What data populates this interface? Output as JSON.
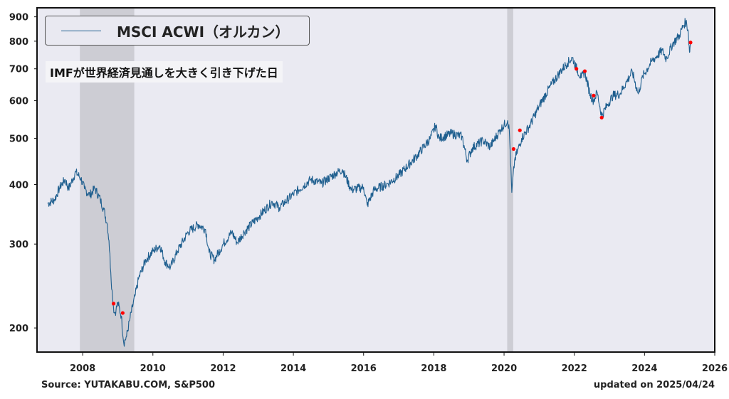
{
  "chart_data": {
    "type": "line",
    "title": "",
    "xlabel": "",
    "ylabel": "",
    "yscale": "log",
    "xlim": [
      2006.7,
      2026.0
    ],
    "ylim": [
      178,
      940
    ],
    "x_ticks": [
      2008,
      2010,
      2012,
      2014,
      2016,
      2018,
      2020,
      2022,
      2024,
      2026
    ],
    "y_ticks": [
      200,
      300,
      400,
      500,
      600,
      700,
      800,
      900
    ],
    "grid": false,
    "legend_position": "top-left",
    "colors": {
      "line": "#1f5f8f",
      "marker": "#ff0000",
      "plot_bg": "#eaeaf2",
      "shade": "#c8c8cf"
    },
    "series": [
      {
        "name": "MSCI ACWI（オルカン）",
        "points": [
          [
            2007.0,
            365
          ],
          [
            2007.2,
            372
          ],
          [
            2007.35,
            395
          ],
          [
            2007.5,
            410
          ],
          [
            2007.6,
            392
          ],
          [
            2007.8,
            425
          ],
          [
            2007.95,
            412
          ],
          [
            2008.05,
            392
          ],
          [
            2008.2,
            380
          ],
          [
            2008.35,
            393
          ],
          [
            2008.5,
            372
          ],
          [
            2008.6,
            355
          ],
          [
            2008.7,
            330
          ],
          [
            2008.75,
            305
          ],
          [
            2008.8,
            262
          ],
          [
            2008.85,
            232
          ],
          [
            2008.9,
            215
          ],
          [
            2008.95,
            218
          ],
          [
            2009.0,
            226
          ],
          [
            2009.1,
            212
          ],
          [
            2009.17,
            186
          ],
          [
            2009.25,
            192
          ],
          [
            2009.35,
            210
          ],
          [
            2009.5,
            235
          ],
          [
            2009.6,
            255
          ],
          [
            2009.8,
            278
          ],
          [
            2010.0,
            290
          ],
          [
            2010.2,
            298
          ],
          [
            2010.35,
            275
          ],
          [
            2010.5,
            268
          ],
          [
            2010.7,
            290
          ],
          [
            2011.0,
            318
          ],
          [
            2011.3,
            330
          ],
          [
            2011.5,
            322
          ],
          [
            2011.6,
            288
          ],
          [
            2011.75,
            278
          ],
          [
            2012.0,
            300
          ],
          [
            2012.25,
            318
          ],
          [
            2012.4,
            302
          ],
          [
            2012.6,
            318
          ],
          [
            2013.0,
            342
          ],
          [
            2013.4,
            368
          ],
          [
            2013.6,
            358
          ],
          [
            2014.0,
            382
          ],
          [
            2014.5,
            410
          ],
          [
            2014.8,
            402
          ],
          [
            2015.2,
            422
          ],
          [
            2015.4,
            430
          ],
          [
            2015.65,
            390
          ],
          [
            2016.0,
            395
          ],
          [
            2016.1,
            362
          ],
          [
            2016.3,
            390
          ],
          [
            2016.7,
            402
          ],
          [
            2017.0,
            418
          ],
          [
            2017.5,
            458
          ],
          [
            2017.9,
            500
          ],
          [
            2018.05,
            532
          ],
          [
            2018.15,
            500
          ],
          [
            2018.5,
            512
          ],
          [
            2018.8,
            505
          ],
          [
            2018.95,
            450
          ],
          [
            2019.1,
            478
          ],
          [
            2019.4,
            495
          ],
          [
            2019.6,
            480
          ],
          [
            2019.9,
            522
          ],
          [
            2020.1,
            545
          ],
          [
            2020.15,
            520
          ],
          [
            2020.22,
            385
          ],
          [
            2020.3,
            450
          ],
          [
            2020.5,
            500
          ],
          [
            2020.75,
            535
          ],
          [
            2021.0,
            585
          ],
          [
            2021.3,
            640
          ],
          [
            2021.6,
            690
          ],
          [
            2021.8,
            720
          ],
          [
            2021.95,
            738
          ],
          [
            2022.05,
            705
          ],
          [
            2022.2,
            670
          ],
          [
            2022.3,
            690
          ],
          [
            2022.45,
            618
          ],
          [
            2022.55,
            600
          ],
          [
            2022.65,
            625
          ],
          [
            2022.78,
            558
          ],
          [
            2022.95,
            590
          ],
          [
            2023.1,
            615
          ],
          [
            2023.3,
            620
          ],
          [
            2023.5,
            660
          ],
          [
            2023.65,
            690
          ],
          [
            2023.82,
            620
          ],
          [
            2023.95,
            675
          ],
          [
            2024.2,
            725
          ],
          [
            2024.5,
            765
          ],
          [
            2024.62,
            735
          ],
          [
            2024.8,
            790
          ],
          [
            2025.0,
            825
          ],
          [
            2025.1,
            862
          ],
          [
            2025.18,
            880
          ],
          [
            2025.24,
            845
          ],
          [
            2025.28,
            758
          ],
          [
            2025.31,
            795
          ]
        ]
      }
    ],
    "markers": [
      [
        2008.88,
        225
      ],
      [
        2009.14,
        215
      ],
      [
        2020.27,
        475
      ],
      [
        2020.45,
        520
      ],
      [
        2022.06,
        700
      ],
      [
        2022.3,
        692
      ],
      [
        2022.55,
        615
      ],
      [
        2022.78,
        553
      ],
      [
        2025.31,
        795
      ]
    ],
    "shaded_x_ranges": [
      [
        2007.92,
        2009.47
      ],
      [
        2020.09,
        2020.26
      ]
    ],
    "legend": {
      "label": "MSCI ACWI（オルカン）"
    },
    "annotation": "IMFが世界経済見通しを大きく引き下げた日",
    "source": "Source: YUTAKABU.COM, S&P500",
    "updated": "updated on 2025/04/24"
  }
}
